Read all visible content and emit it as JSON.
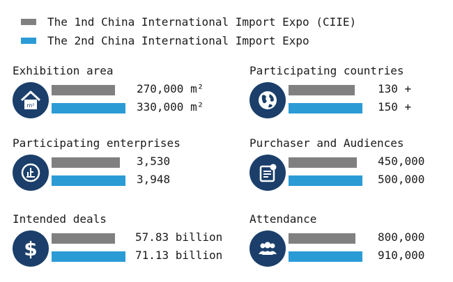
{
  "colors": {
    "edition_1": "#808080",
    "edition_2": "#2b9bd6",
    "icon_bg": "#1b3f6a"
  },
  "chart_data": {
    "type": "bar",
    "series": [
      {
        "name": "The 1nd China International Import Expo (CIIE)"
      },
      {
        "name": "The 2nd China International Import Expo"
      }
    ],
    "panels": [
      {
        "title": "Exhibition area",
        "icon": "house-icon",
        "values": [
          270000,
          330000
        ],
        "labels": [
          "270,000 m²",
          "330,000 m²"
        ]
      },
      {
        "title": "Participating countries",
        "icon": "globe-icon",
        "values": [
          130,
          150
        ],
        "labels": [
          "130 +",
          "150 +"
        ]
      },
      {
        "title": "Participating enterprises",
        "icon": "enterprise-icon",
        "values": [
          3530,
          3948
        ],
        "labels": [
          "3,530",
          "3,948"
        ]
      },
      {
        "title": "Purchaser and Audiences",
        "icon": "document-icon",
        "values": [
          450000,
          500000
        ],
        "labels": [
          "450,000",
          "500,000"
        ]
      },
      {
        "title": "Intended deals",
        "icon": "dollar-icon",
        "values": [
          57.83,
          71.13
        ],
        "labels": [
          "57.83 billion",
          "71.13 billion"
        ]
      },
      {
        "title": "Attendance",
        "icon": "people-icon",
        "values": [
          800000,
          910000
        ],
        "labels": [
          "800,000",
          "910,000"
        ]
      }
    ]
  }
}
